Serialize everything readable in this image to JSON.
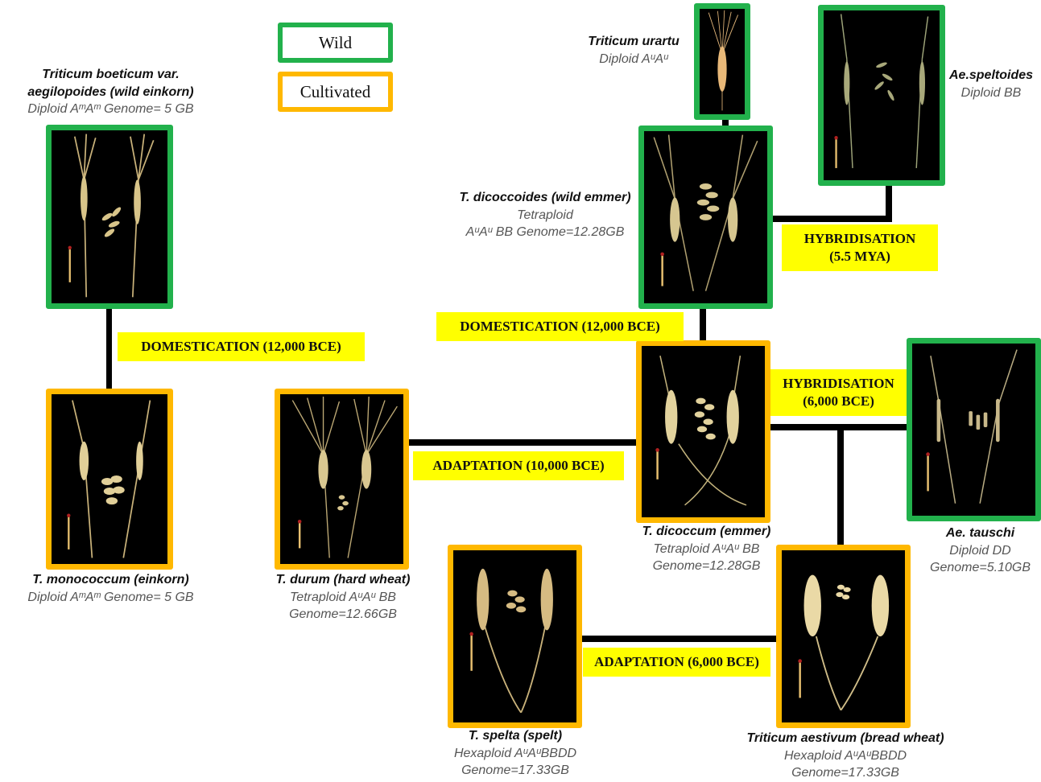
{
  "legend": {
    "wild": "Wild",
    "cultivated": "Cultivated",
    "colors": {
      "wild": "#22b14c",
      "cultivated": "#ffb800",
      "event_bg": "#ffff00"
    }
  },
  "species": {
    "wild_einkorn": {
      "name_line1": "Triticum boeticum var.",
      "name_line2": "aegilopoides (wild einkorn)",
      "detail": "Diploid AᵐAᵐ Genome= 5 GB",
      "category": "wild"
    },
    "einkorn": {
      "name": "T. monococcum (einkorn)",
      "detail": "Diploid AᵐAᵐ Genome= 5 GB",
      "category": "cultivated"
    },
    "hard_wheat": {
      "name": "T. durum (hard wheat)",
      "detail_line1": "Tetraploid AᵘAᵘ BB",
      "detail_line2": "Genome=12.66GB",
      "category": "cultivated"
    },
    "urartu": {
      "name": "Triticum urartu",
      "detail": "Diploid AᵘAᵘ",
      "category": "wild"
    },
    "speltoides": {
      "name": "Ae.speltoides",
      "detail": "Diploid BB",
      "category": "wild"
    },
    "wild_emmer": {
      "name": "T. dicoccoides  (wild emmer)",
      "detail_line1": "Tetraploid",
      "detail_line2": "AᵘAᵘ BB Genome=12.28GB",
      "category": "wild"
    },
    "emmer": {
      "name": "T. dicoccum (emmer)",
      "detail_line1": "Tetraploid AᵘAᵘ BB",
      "detail_line2": "Genome=12.28GB",
      "category": "cultivated"
    },
    "tauschi": {
      "name": "Ae. tauschi",
      "detail_line1": "Diploid DD",
      "detail_line2": "Genome=5.10GB",
      "category": "wild"
    },
    "spelt": {
      "name": "T. spelta (spelt)",
      "detail_line1": "Hexaploid AᵘAᵘBBDD",
      "detail_line2": "Genome=17.33GB",
      "category": "cultivated"
    },
    "bread_wheat": {
      "name": "Triticum aestivum (bread wheat)",
      "detail_line1": "Hexaploid AᵘAᵘBBDD",
      "detail_line2": "Genome=17.33GB",
      "category": "cultivated"
    }
  },
  "events": {
    "domestication_einkorn": "DOMESTICATION (12,000 BCE)",
    "domestication_emmer": "DOMESTICATION (12,000 BCE)",
    "hybridisation_1_line1": "HYBRIDISATION",
    "hybridisation_1_line2": "(5.5 MYA)",
    "hybridisation_2_line1": "HYBRIDISATION",
    "hybridisation_2_line2": "(6,000 BCE)",
    "adaptation_durum": "ADAPTATION (10,000 BCE)",
    "adaptation_spelt": "ADAPTATION (6,000 BCE)"
  }
}
